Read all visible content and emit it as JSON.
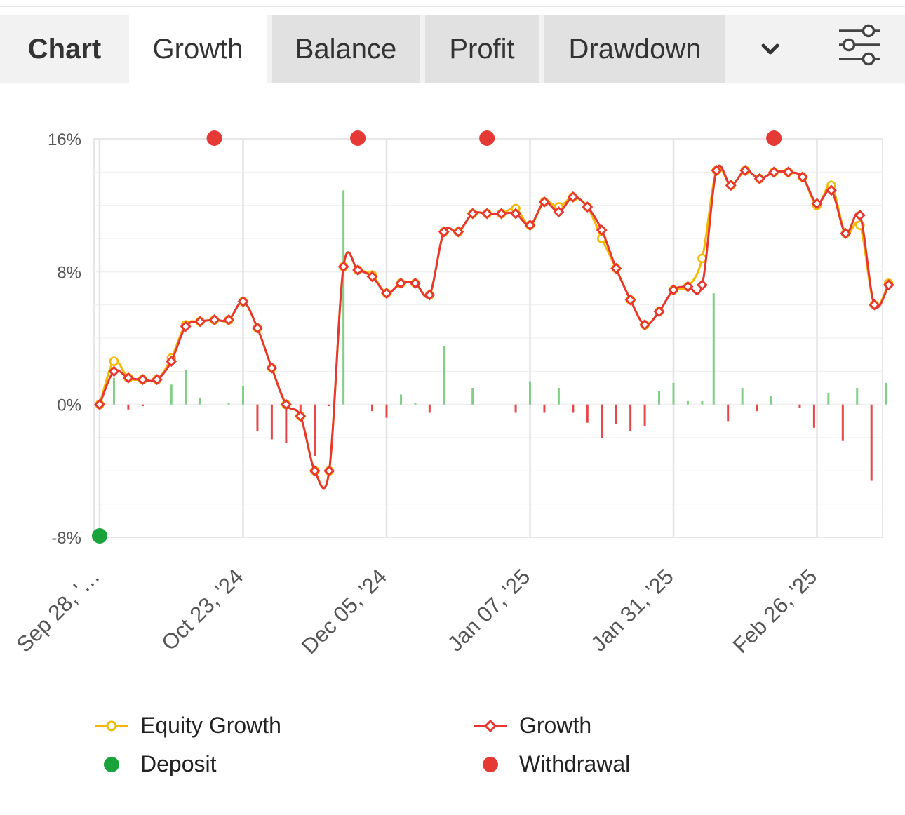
{
  "tabs": {
    "title": "Chart",
    "items": [
      {
        "label": "Growth",
        "active": true
      },
      {
        "label": "Balance",
        "active": false
      },
      {
        "label": "Profit",
        "active": false
      },
      {
        "label": "Drawdown",
        "active": false
      }
    ],
    "more_icon": "chevron-down-icon",
    "settings_icon": "sliders-icon"
  },
  "colors": {
    "growth": "#e8372f",
    "equity": "#f5b800",
    "deposit": "#1aa33a",
    "withdrawal": "#e53935",
    "bar_pos": "#7fcf85",
    "bar_neg": "#e8474a",
    "grid": "#e7e7e7"
  },
  "chart_data": {
    "type": "line",
    "ylim": [
      -8,
      16
    ],
    "y_ticks": [
      16,
      8,
      0,
      -8
    ],
    "y_tick_labels": [
      "16%",
      "8%",
      "0%",
      "-8%"
    ],
    "x_range": [
      0,
      54
    ],
    "x_ticks": [
      0,
      10,
      20,
      30,
      40,
      50
    ],
    "x_tick_labels": [
      "Sep 28, '…",
      "Oct 23, '24",
      "Dec 05, '24",
      "Jan 07, '25",
      "Jan 31, '25",
      "Feb 26, '25"
    ],
    "series": [
      {
        "name": "Growth",
        "values": [
          0,
          2,
          1.6,
          1.5,
          1.5,
          2.6,
          4.7,
          5,
          5.1,
          5.1,
          6.2,
          4.6,
          2.2,
          0,
          -0.7,
          -4,
          -4,
          8.3,
          8.1,
          7.7,
          6.7,
          7.3,
          7.3,
          6.6,
          10.4,
          10.4,
          11.5,
          11.5,
          11.5,
          11.5,
          10.8,
          12.2,
          11.6,
          12.5,
          11.9,
          10.5,
          8.2,
          6.3,
          4.8,
          5.6,
          6.9,
          7.1,
          7.2,
          14.1,
          13.2,
          14.1,
          13.6,
          14,
          14,
          13.7,
          12.1,
          12.9,
          10.3,
          11.4,
          6,
          7.2
        ]
      },
      {
        "name": "Equity Growth",
        "values": [
          0,
          2.6,
          1.6,
          1.5,
          1.5,
          2.8,
          4.8,
          5,
          5.1,
          5.1,
          6.2,
          4.6,
          2.2,
          0,
          -0.7,
          -4,
          -4,
          8.3,
          8.1,
          7.8,
          6.7,
          7.3,
          7.3,
          6.6,
          10.4,
          10.4,
          11.5,
          11.5,
          11.5,
          11.8,
          10.8,
          12.2,
          11.9,
          12.5,
          11.9,
          10,
          8.2,
          6.3,
          4.8,
          5.6,
          6.9,
          7.1,
          8.8,
          14.1,
          13.2,
          14.1,
          13.6,
          14,
          14,
          13.7,
          12,
          13.2,
          10.3,
          10.8,
          6,
          7.3
        ]
      }
    ],
    "bars": [
      {
        "x": 1,
        "v": 1.6
      },
      {
        "x": 2,
        "v": -0.3
      },
      {
        "x": 3,
        "v": -0.1
      },
      {
        "x": 5,
        "v": 1.2
      },
      {
        "x": 6,
        "v": 2.1
      },
      {
        "x": 7,
        "v": 0.4
      },
      {
        "x": 9,
        "v": 0.1
      },
      {
        "x": 10,
        "v": 1.1
      },
      {
        "x": 11,
        "v": -1.6
      },
      {
        "x": 12,
        "v": -2.1
      },
      {
        "x": 13,
        "v": -2.3
      },
      {
        "x": 14,
        "v": -0.7
      },
      {
        "x": 15,
        "v": -3.1
      },
      {
        "x": 16,
        "v": -0.1
      },
      {
        "x": 17,
        "v": 12.9
      },
      {
        "x": 19,
        "v": -0.4
      },
      {
        "x": 20,
        "v": -0.8
      },
      {
        "x": 21,
        "v": 0.6
      },
      {
        "x": 22,
        "v": 0.1
      },
      {
        "x": 23,
        "v": -0.5
      },
      {
        "x": 24,
        "v": 3.5
      },
      {
        "x": 26,
        "v": 1
      },
      {
        "x": 29,
        "v": -0.5
      },
      {
        "x": 30,
        "v": 1.4
      },
      {
        "x": 31,
        "v": -0.5
      },
      {
        "x": 32,
        "v": 1
      },
      {
        "x": 33,
        "v": -0.5
      },
      {
        "x": 34,
        "v": -1.1
      },
      {
        "x": 35,
        "v": -2
      },
      {
        "x": 36,
        "v": -1.2
      },
      {
        "x": 37,
        "v": -1.6
      },
      {
        "x": 38,
        "v": -1.3
      },
      {
        "x": 39,
        "v": 0.8
      },
      {
        "x": 40,
        "v": 1.3
      },
      {
        "x": 41,
        "v": 0.2
      },
      {
        "x": 42,
        "v": 0.2
      },
      {
        "x": 42.8,
        "v": 6.7
      },
      {
        "x": 43.8,
        "v": -1
      },
      {
        "x": 44.8,
        "v": 1
      },
      {
        "x": 45.8,
        "v": -0.4
      },
      {
        "x": 46.8,
        "v": 0.5
      },
      {
        "x": 48.8,
        "v": -0.2
      },
      {
        "x": 49.8,
        "v": -1.4
      },
      {
        "x": 50.8,
        "v": 0.7
      },
      {
        "x": 51.8,
        "v": -2.2
      },
      {
        "x": 52.8,
        "v": 1
      },
      {
        "x": 53.8,
        "v": -4.6
      },
      {
        "x": 54.8,
        "v": 1.3
      }
    ],
    "withdrawal_markers": [
      8,
      18,
      27,
      47
    ],
    "deposit_markers": [
      0
    ],
    "legend": [
      "Equity Growth",
      "Growth",
      "Deposit",
      "Withdrawal"
    ]
  }
}
